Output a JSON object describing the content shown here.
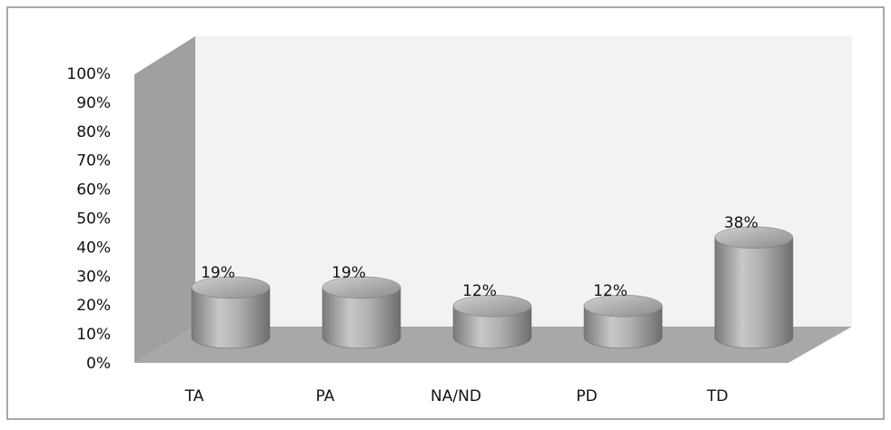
{
  "chart_data": {
    "type": "bar",
    "categories": [
      "TA",
      "PA",
      "NA/ND",
      "PD",
      "TD"
    ],
    "values": [
      19,
      19,
      12,
      12,
      38
    ],
    "value_labels": [
      "19%",
      "19%",
      "12%",
      "12%",
      "38%"
    ],
    "color": "#a6a6a6",
    "ylim": [
      0,
      100
    ],
    "yticks": [
      {
        "value": 0,
        "label": "0%"
      },
      {
        "value": 10,
        "label": "10%"
      },
      {
        "value": 20,
        "label": "20%"
      },
      {
        "value": 30,
        "label": "30%"
      },
      {
        "value": 40,
        "label": "40%"
      },
      {
        "value": 50,
        "label": "50%"
      },
      {
        "value": 60,
        "label": "60%"
      },
      {
        "value": 70,
        "label": "70%"
      },
      {
        "value": 80,
        "label": "80%"
      },
      {
        "value": 90,
        "label": "90%"
      },
      {
        "value": 100,
        "label": "100%"
      }
    ],
    "grid": false
  }
}
